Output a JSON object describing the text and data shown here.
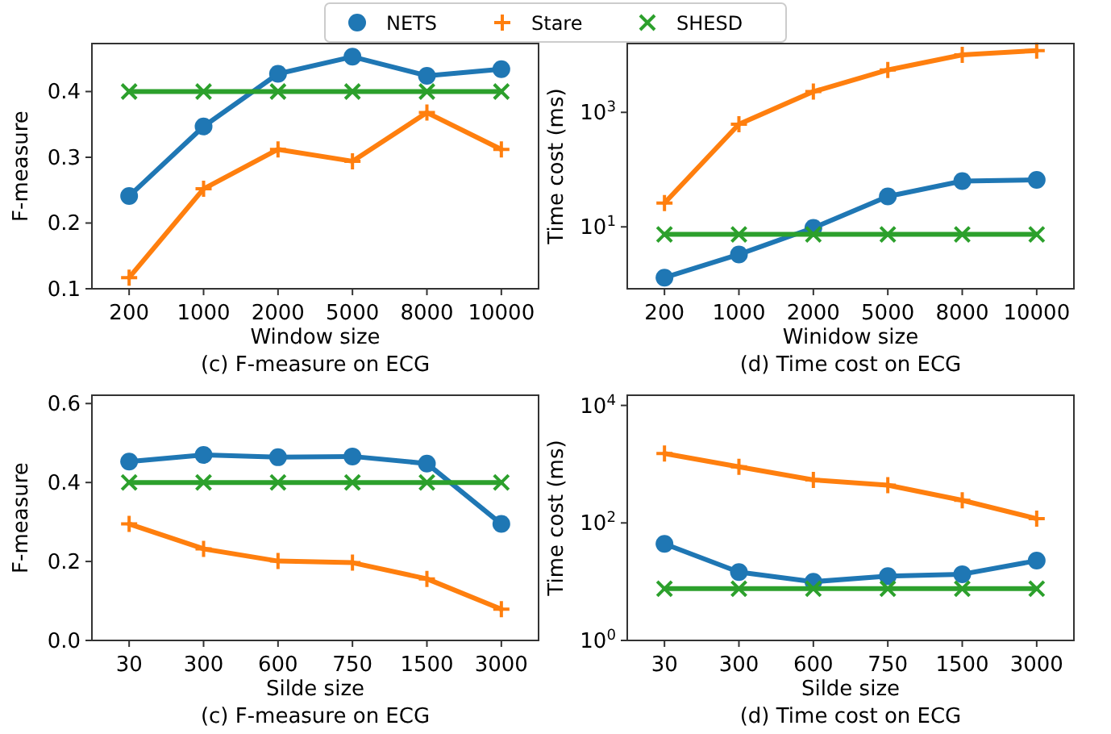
{
  "chart_data": [
    {
      "type": "line",
      "title": "(c) F-measure on ECG",
      "xlabel": "Window size",
      "ylabel": "F-measure",
      "categories": [
        "200",
        "1000",
        "2000",
        "5000",
        "8000",
        "10000"
      ],
      "ylim": [
        0.1,
        0.473
      ],
      "yticks": [
        {
          "value": 0.1,
          "label": "0.1"
        },
        {
          "value": 0.2,
          "label": "0.2"
        },
        {
          "value": 0.3,
          "label": "0.3"
        },
        {
          "value": 0.4,
          "label": "0.4"
        }
      ],
      "legend": "top",
      "series": [
        {
          "name": "NETS",
          "color": "#1f77b4",
          "marker": "circle",
          "values": [
            0.241,
            0.347,
            0.427,
            0.453,
            0.424,
            0.434
          ]
        },
        {
          "name": "Stare",
          "color": "#ff7f0e",
          "marker": "plus",
          "values": [
            0.117,
            0.252,
            0.312,
            0.294,
            0.368,
            0.312
          ]
        },
        {
          "name": "SHESD",
          "color": "#2ca02c",
          "marker": "cross",
          "values": [
            0.4,
            0.4,
            0.4,
            0.4,
            0.4,
            0.4
          ]
        }
      ]
    },
    {
      "type": "line",
      "title": "(d) Time cost on ECG",
      "xlabel": "Winidow size",
      "ylabel": "Time cost (ms)",
      "categories": [
        "200",
        "1000",
        "2000",
        "5000",
        "8000",
        "10000"
      ],
      "log": "y",
      "ylim": [
        0.83,
        15900
      ],
      "yticks": [
        {
          "value": 10,
          "label": "10$^{1}$"
        },
        {
          "value": 1000,
          "label": "10$^{3}$"
        }
      ],
      "series": [
        {
          "color": "#1f77b4",
          "marker": "circle",
          "values": [
            1.3,
            3.3,
            9.6,
            34,
            63,
            66
          ]
        },
        {
          "color": "#ff7f0e",
          "marker": "plus",
          "values": [
            26,
            620,
            2300,
            5500,
            10100,
            12000
          ]
        },
        {
          "color": "#2ca02c",
          "marker": "cross",
          "values": [
            7.4,
            7.4,
            7.4,
            7.4,
            7.4,
            7.4
          ]
        }
      ]
    },
    {
      "type": "line",
      "title": "(c) F-measure on ECG",
      "xlabel": "Silde size",
      "ylabel": "F-measure",
      "categories": [
        "30",
        "300",
        "600",
        "750",
        "1500",
        "3000"
      ],
      "ylim": [
        0,
        0.621
      ],
      "yticks": [
        {
          "value": 0,
          "label": "0.0"
        },
        {
          "value": 0.2,
          "label": "0.2"
        },
        {
          "value": 0.4,
          "label": "0.4"
        },
        {
          "value": 0.6,
          "label": "0.6"
        }
      ],
      "series": [
        {
          "color": "#1f77b4",
          "marker": "circle",
          "values": [
            0.453,
            0.47,
            0.464,
            0.466,
            0.448,
            0.295
          ]
        },
        {
          "color": "#ff7f0e",
          "marker": "plus",
          "values": [
            0.295,
            0.232,
            0.201,
            0.197,
            0.156,
            0.079
          ]
        },
        {
          "color": "#2ca02c",
          "marker": "cross",
          "values": [
            0.4,
            0.4,
            0.4,
            0.4,
            0.4,
            0.4
          ]
        }
      ]
    },
    {
      "type": "line",
      "title": "(d) Time cost on ECG",
      "xlabel": "Silde size",
      "ylabel": "Time cost (ms)",
      "categories": [
        "30",
        "300",
        "600",
        "750",
        "1500",
        "3000"
      ],
      "log": "y",
      "ylim": [
        1,
        14900
      ],
      "yticks": [
        {
          "value": 1,
          "label": "10$^{0}$"
        },
        {
          "value": 100,
          "label": "10$^{2}$"
        },
        {
          "value": 10000,
          "label": "10$^{4}$"
        }
      ],
      "series": [
        {
          "color": "#1f77b4",
          "marker": "circle",
          "values": [
            44,
            14.6,
            10,
            12.4,
            13.4,
            22.8
          ]
        },
        {
          "color": "#ff7f0e",
          "marker": "plus",
          "values": [
            1520,
            900,
            540,
            440,
            243,
            118
          ]
        },
        {
          "color": "#2ca02c",
          "marker": "cross",
          "values": [
            7.6,
            7.6,
            7.6,
            7.6,
            7.6,
            7.6
          ]
        }
      ]
    }
  ]
}
